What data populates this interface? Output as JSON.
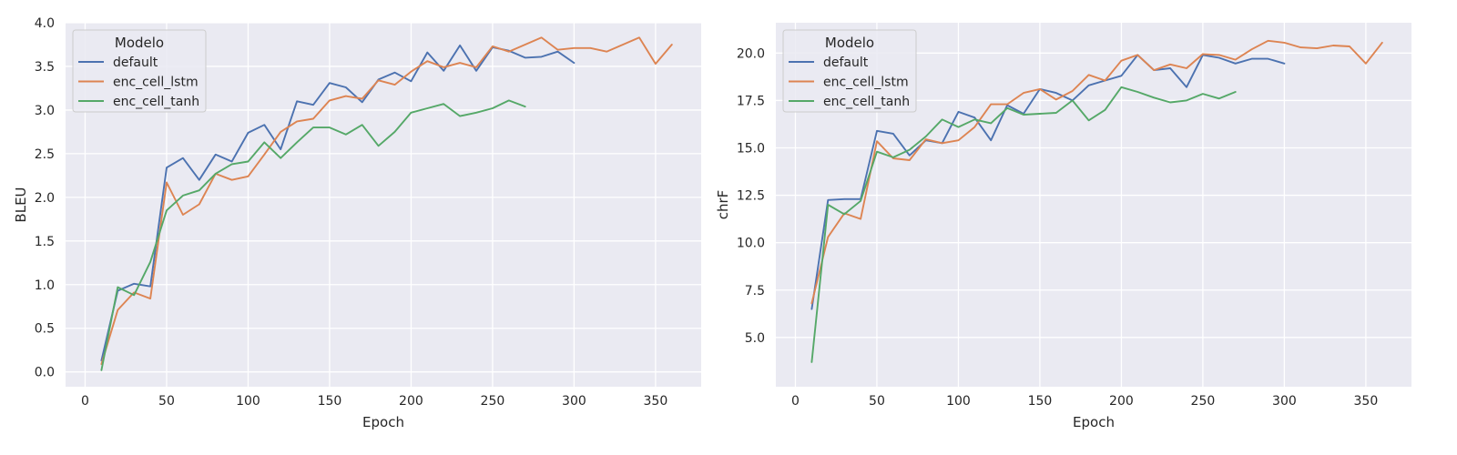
{
  "colors": {
    "background": "#ffffff",
    "axes_face": "#eaeaf2",
    "grid": "#ffffff",
    "text": "#262626",
    "default": "#4c72b0",
    "enc_cell_lstm": "#dd8452",
    "enc_cell_tanh": "#55a868"
  },
  "chart_data": [
    {
      "type": "line",
      "title": "",
      "xlabel": "Epoch",
      "ylabel": "BLEU",
      "xlim": [
        -12,
        378
      ],
      "ylim": [
        -0.17,
        4.0
      ],
      "xticks": [
        0,
        50,
        100,
        150,
        200,
        250,
        300,
        350
      ],
      "yticks": [
        0.0,
        0.5,
        1.0,
        1.5,
        2.0,
        2.5,
        3.0,
        3.5,
        4.0
      ],
      "ytick_decimals": 1,
      "grid": true,
      "legend": {
        "title": "Modelo",
        "position": "top-left"
      },
      "series": [
        {
          "name": "default",
          "color_key": "default",
          "x": [
            10,
            20,
            30,
            40,
            50,
            60,
            70,
            80,
            90,
            100,
            110,
            120,
            130,
            140,
            150,
            160,
            170,
            180,
            190,
            200,
            210,
            220,
            230,
            240,
            250,
            260,
            270,
            280,
            290,
            300
          ],
          "y": [
            0.13,
            0.93,
            1.01,
            0.98,
            2.34,
            2.45,
            2.2,
            2.49,
            2.41,
            2.74,
            2.83,
            2.55,
            3.1,
            3.06,
            3.31,
            3.26,
            3.09,
            3.35,
            3.43,
            3.33,
            3.66,
            3.45,
            3.74,
            3.45,
            3.72,
            3.68,
            3.6,
            3.61,
            3.67,
            3.54
          ]
        },
        {
          "name": "enc_cell_lstm",
          "color_key": "enc_cell_lstm",
          "x": [
            10,
            20,
            30,
            40,
            50,
            60,
            70,
            80,
            90,
            100,
            110,
            120,
            130,
            140,
            150,
            160,
            170,
            180,
            190,
            200,
            210,
            220,
            230,
            240,
            250,
            260,
            270,
            280,
            290,
            300,
            310,
            320,
            330,
            340,
            350,
            360
          ],
          "y": [
            0.09,
            0.71,
            0.91,
            0.84,
            2.17,
            1.8,
            1.92,
            2.27,
            2.2,
            2.24,
            2.49,
            2.75,
            2.87,
            2.9,
            3.11,
            3.16,
            3.13,
            3.34,
            3.29,
            3.44,
            3.56,
            3.49,
            3.54,
            3.49,
            3.73,
            3.67,
            3.75,
            3.83,
            3.69,
            3.71,
            3.71,
            3.67,
            3.75,
            3.83,
            3.53,
            3.75
          ]
        },
        {
          "name": "enc_cell_tanh",
          "color_key": "enc_cell_tanh",
          "x": [
            10,
            20,
            30,
            40,
            50,
            60,
            70,
            80,
            90,
            100,
            110,
            120,
            130,
            140,
            150,
            160,
            170,
            180,
            190,
            200,
            210,
            220,
            230,
            240,
            250,
            260,
            270
          ],
          "y": [
            0.02,
            0.97,
            0.88,
            1.26,
            1.85,
            2.02,
            2.08,
            2.27,
            2.38,
            2.41,
            2.63,
            2.45,
            2.63,
            2.8,
            2.8,
            2.72,
            2.83,
            2.59,
            2.75,
            2.97,
            3.02,
            3.07,
            2.93,
            2.97,
            3.02,
            3.11,
            3.04
          ]
        }
      ]
    },
    {
      "type": "line",
      "title": "",
      "xlabel": "Epoch",
      "ylabel": "chrF",
      "xlim": [
        -12,
        378
      ],
      "ylim": [
        2.4,
        21.6
      ],
      "xticks": [
        0,
        50,
        100,
        150,
        200,
        250,
        300,
        350
      ],
      "yticks": [
        5.0,
        7.5,
        10.0,
        12.5,
        15.0,
        17.5,
        20.0
      ],
      "ytick_decimals": 1,
      "grid": true,
      "legend": {
        "title": "Modelo",
        "position": "top-left"
      },
      "series": [
        {
          "name": "default",
          "color_key": "default",
          "x": [
            10,
            20,
            30,
            40,
            50,
            60,
            70,
            80,
            90,
            100,
            110,
            120,
            130,
            140,
            150,
            160,
            170,
            180,
            190,
            200,
            210,
            220,
            230,
            240,
            250,
            260,
            270,
            280,
            290,
            300
          ],
          "y": [
            6.5,
            12.25,
            12.3,
            12.3,
            15.9,
            15.75,
            14.6,
            15.4,
            15.25,
            16.9,
            16.6,
            15.4,
            17.25,
            16.8,
            18.1,
            17.9,
            17.5,
            18.3,
            18.55,
            18.8,
            19.9,
            19.1,
            19.2,
            18.2,
            19.9,
            19.75,
            19.45,
            19.7,
            19.7,
            19.45
          ]
        },
        {
          "name": "enc_cell_lstm",
          "color_key": "enc_cell_lstm",
          "x": [
            10,
            20,
            30,
            40,
            50,
            60,
            70,
            80,
            90,
            100,
            110,
            120,
            130,
            140,
            150,
            160,
            170,
            180,
            190,
            200,
            210,
            220,
            230,
            240,
            250,
            260,
            270,
            280,
            290,
            300,
            310,
            320,
            330,
            340,
            350,
            360
          ],
          "y": [
            6.8,
            10.3,
            11.55,
            11.25,
            15.35,
            14.45,
            14.35,
            15.45,
            15.25,
            15.4,
            16.1,
            17.3,
            17.3,
            17.9,
            18.1,
            17.55,
            18.0,
            18.85,
            18.55,
            19.6,
            19.9,
            19.1,
            19.4,
            19.2,
            19.95,
            19.9,
            19.65,
            20.2,
            20.65,
            20.55,
            20.3,
            20.25,
            20.4,
            20.35,
            19.45,
            20.55
          ]
        },
        {
          "name": "enc_cell_tanh",
          "color_key": "enc_cell_tanh",
          "x": [
            10,
            20,
            30,
            40,
            50,
            60,
            70,
            80,
            90,
            100,
            110,
            120,
            130,
            140,
            150,
            160,
            170,
            180,
            190,
            200,
            210,
            220,
            230,
            240,
            250,
            260,
            270
          ],
          "y": [
            3.7,
            12.0,
            11.5,
            12.2,
            14.8,
            14.5,
            14.9,
            15.6,
            16.5,
            16.1,
            16.5,
            16.3,
            17.1,
            16.75,
            16.8,
            16.85,
            17.5,
            16.45,
            17.0,
            18.2,
            17.95,
            17.65,
            17.4,
            17.5,
            17.85,
            17.6,
            17.95
          ]
        }
      ]
    }
  ]
}
